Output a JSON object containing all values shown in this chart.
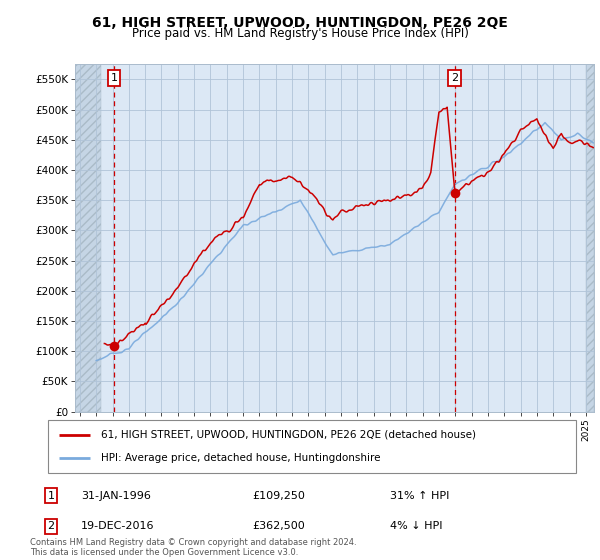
{
  "title": "61, HIGH STREET, UPWOOD, HUNTINGDON, PE26 2QE",
  "subtitle": "Price paid vs. HM Land Registry's House Price Index (HPI)",
  "ylim": [
    0,
    575000
  ],
  "yticks": [
    0,
    50000,
    100000,
    150000,
    200000,
    250000,
    300000,
    350000,
    400000,
    450000,
    500000,
    550000
  ],
  "ytick_labels": [
    "£0",
    "£50K",
    "£100K",
    "£150K",
    "£200K",
    "£250K",
    "£300K",
    "£350K",
    "£400K",
    "£450K",
    "£500K",
    "£550K"
  ],
  "sale1_date_num": 1996.08,
  "sale1_price": 109250,
  "sale1_date_str": "31-JAN-1996",
  "sale1_price_str": "£109,250",
  "sale1_hpi_str": "31% ↑ HPI",
  "sale2_date_num": 2016.97,
  "sale2_price": 362500,
  "sale2_date_str": "19-DEC-2016",
  "sale2_price_str": "£362,500",
  "sale2_hpi_str": "4% ↓ HPI",
  "property_line_color": "#cc0000",
  "hpi_line_color": "#7aaadd",
  "bg_plot_color": "#dce8f5",
  "bg_hatch_color": "#c5d5e5",
  "grid_color": "#b0c4d8",
  "legend_label1": "61, HIGH STREET, UPWOOD, HUNTINGDON, PE26 2QE (detached house)",
  "legend_label2": "HPI: Average price, detached house, Huntingdonshire",
  "footer": "Contains HM Land Registry data © Crown copyright and database right 2024.\nThis data is licensed under the Open Government Licence v3.0.",
  "xmin": 1993.7,
  "xmax": 2025.5,
  "hatch_end": 1995.3,
  "hatch_start_right": 2025.0
}
